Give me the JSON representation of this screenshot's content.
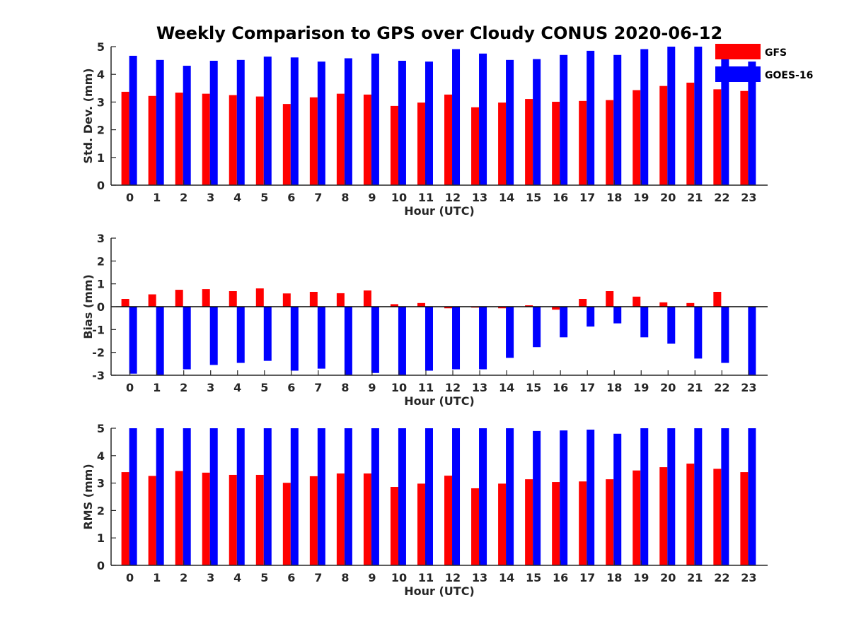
{
  "chart_data": {
    "title": "Weekly Comparison to GPS over Cloudy CONUS 2020-06-12",
    "legend": {
      "placement": "top-right",
      "items": [
        {
          "name": "GFS",
          "color": "#ff0000"
        },
        {
          "name": "GOES-16",
          "color": "#0000ff"
        }
      ]
    },
    "panels": [
      {
        "type": "bar",
        "xlabel": "Hour (UTC)",
        "ylabel": "Std. Dev. (mm)",
        "ylim": [
          0,
          5
        ],
        "yticks": [
          "0",
          "1",
          "2",
          "3",
          "4",
          "5"
        ],
        "categories": [
          "0",
          "1",
          "2",
          "3",
          "4",
          "5",
          "6",
          "7",
          "8",
          "9",
          "10",
          "11",
          "12",
          "13",
          "14",
          "15",
          "16",
          "17",
          "18",
          "19",
          "20",
          "21",
          "22",
          "23"
        ],
        "series": [
          {
            "name": "GFS",
            "color": "#ff0000",
            "values": [
              3.37,
              3.22,
              3.34,
              3.3,
              3.25,
              3.2,
              2.93,
              3.17,
              3.3,
              3.27,
              2.86,
              2.98,
              3.27,
              2.81,
              2.98,
              3.11,
              3.01,
              3.04,
              3.07,
              3.43,
              3.58,
              3.7,
              3.46,
              3.4
            ]
          },
          {
            "name": "GOES-16",
            "color": "#0000ff",
            "values": [
              4.67,
              4.52,
              4.31,
              4.49,
              4.52,
              4.64,
              4.61,
              4.46,
              4.58,
              4.75,
              4.49,
              4.46,
              4.91,
              4.75,
              4.52,
              4.55,
              4.7,
              4.85,
              4.7,
              4.91,
              5.0,
              5.0,
              4.75,
              4.46
            ]
          }
        ]
      },
      {
        "type": "bar",
        "xlabel": "Hour (UTC)",
        "ylabel": "Bias (mm)",
        "ylim": [
          -3,
          3
        ],
        "yticks": [
          "-3",
          "-2",
          "-1",
          "0",
          "1",
          "2",
          "3"
        ],
        "categories": [
          "0",
          "1",
          "2",
          "3",
          "4",
          "5",
          "6",
          "7",
          "8",
          "9",
          "10",
          "11",
          "12",
          "13",
          "14",
          "15",
          "16",
          "17",
          "18",
          "19",
          "20",
          "21",
          "22",
          "23"
        ],
        "series": [
          {
            "name": "GFS",
            "color": "#ff0000",
            "values": [
              0.34,
              0.54,
              0.74,
              0.77,
              0.68,
              0.8,
              0.58,
              0.65,
              0.59,
              0.71,
              0.11,
              0.16,
              -0.07,
              -0.04,
              -0.07,
              0.06,
              -0.13,
              0.34,
              0.68,
              0.44,
              0.19,
              0.16,
              0.65,
              0.0
            ]
          },
          {
            "name": "GOES-16",
            "color": "#0000ff",
            "values": [
              -2.93,
              -3.0,
              -2.74,
              -2.55,
              -2.46,
              -2.37,
              -2.8,
              -2.71,
              -3.0,
              -2.9,
              -3.0,
              -2.8,
              -2.74,
              -2.74,
              -2.24,
              -1.77,
              -1.34,
              -0.87,
              -0.73,
              -1.34,
              -1.62,
              -2.27,
              -2.46,
              -3.0
            ]
          }
        ]
      },
      {
        "type": "bar",
        "xlabel": "Hour (UTC)",
        "ylabel": "RMS (mm)",
        "ylim": [
          0,
          5
        ],
        "yticks": [
          "0",
          "1",
          "2",
          "3",
          "4",
          "5"
        ],
        "categories": [
          "0",
          "1",
          "2",
          "3",
          "4",
          "5",
          "6",
          "7",
          "8",
          "9",
          "10",
          "11",
          "12",
          "13",
          "14",
          "15",
          "16",
          "17",
          "18",
          "19",
          "20",
          "21",
          "22",
          "23"
        ],
        "series": [
          {
            "name": "GFS",
            "color": "#ff0000",
            "values": [
              3.4,
              3.26,
              3.44,
              3.38,
              3.3,
              3.3,
              3.01,
              3.25,
              3.35,
              3.35,
              2.86,
              2.98,
              3.27,
              2.81,
              2.98,
              3.14,
              3.04,
              3.06,
              3.14,
              3.46,
              3.58,
              3.71,
              3.52,
              3.4
            ]
          },
          {
            "name": "GOES-16",
            "color": "#0000ff",
            "values": [
              5.0,
              5.0,
              5.0,
              5.0,
              5.0,
              5.0,
              5.0,
              5.0,
              5.0,
              5.0,
              5.0,
              5.0,
              5.0,
              5.0,
              5.0,
              4.9,
              4.92,
              4.95,
              4.8,
              5.0,
              5.0,
              5.0,
              5.0,
              5.0
            ]
          }
        ]
      }
    ]
  }
}
